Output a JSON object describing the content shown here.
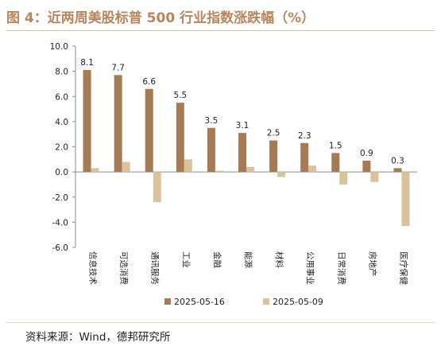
{
  "figure": {
    "title": "图 4：近两周美股标普 500 行业指数涨跌幅（%）",
    "source": "资料来源：Wind，德邦研究所"
  },
  "colors": {
    "accent": "#b9855a",
    "series1": "#a67b53",
    "series2": "#d8c39c",
    "axis": "#8c8c8c"
  },
  "chart_data": {
    "type": "bar",
    "title": "",
    "xlabel": "",
    "ylabel": "",
    "ylim": [
      -6.0,
      10.0
    ],
    "yticks": [
      10.0,
      8.0,
      6.0,
      4.0,
      2.0,
      0.0,
      -2.0,
      -4.0,
      -6.0
    ],
    "ytick_labels": [
      "10.0",
      "8.0",
      "6.0",
      "4.0",
      "2.0",
      "0.0",
      "-2.0",
      "-4.0",
      "-6.0"
    ],
    "grid": false,
    "legend_position": "bottom",
    "categories": [
      "信息技术",
      "可选消费",
      "通讯服务",
      "工业",
      "金融",
      "能源",
      "材料",
      "公用事业",
      "日常消费",
      "房地产",
      "医疗保健"
    ],
    "series": [
      {
        "name": "2025-05-16",
        "values": [
          8.1,
          7.7,
          6.6,
          5.5,
          3.5,
          3.1,
          2.5,
          2.3,
          1.5,
          0.9,
          0.3
        ],
        "labels": [
          "8.1",
          "7.7",
          "6.6",
          "5.5",
          "3.5",
          "3.1",
          "2.5",
          "2.3",
          "1.5",
          "0.9",
          "0.3"
        ]
      },
      {
        "name": "2025-05-09",
        "values": [
          0.3,
          0.8,
          -2.4,
          1.0,
          0.1,
          0.4,
          -0.4,
          0.5,
          -1.0,
          -0.8,
          -4.3
        ]
      }
    ]
  }
}
